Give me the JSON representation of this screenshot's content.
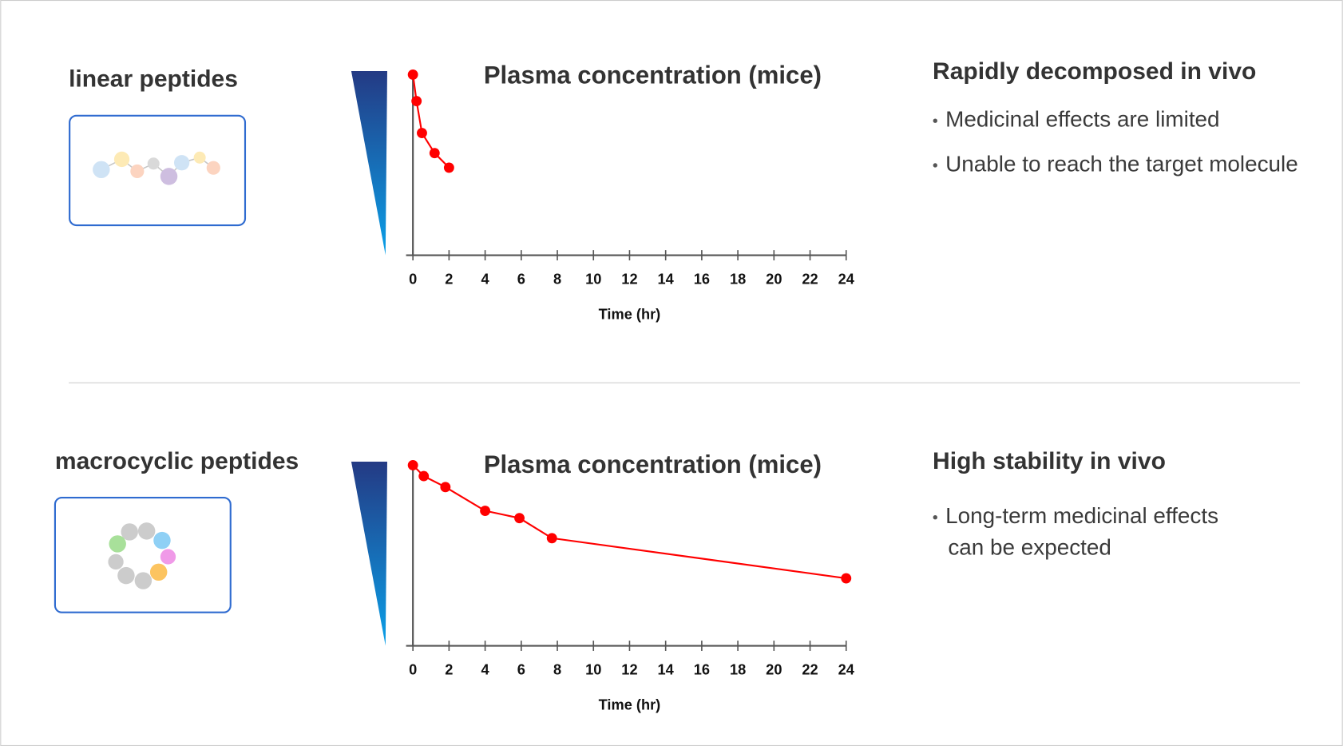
{
  "chart_data": [
    {
      "type": "line",
      "title": "Plasma concentration (mice)",
      "xlabel": "Time (hr)",
      "x": [
        0,
        0.2,
        0.5,
        1.2,
        2
      ],
      "values": [
        99,
        84.5,
        67,
        56,
        48
      ],
      "xlim": [
        0,
        24
      ],
      "xticks": [
        0,
        2,
        4,
        6,
        8,
        10,
        12,
        14,
        16,
        18,
        20,
        22,
        24
      ],
      "ylim": [
        0,
        100
      ],
      "color": "#ff0000"
    },
    {
      "type": "line",
      "title": "Plasma concentration (mice)",
      "xlabel": "Time (hr)",
      "x": [
        0,
        0.6,
        1.8,
        4,
        5.9,
        7.7,
        24
      ],
      "values": [
        99,
        93,
        87,
        74,
        70,
        59,
        37
      ],
      "xlim": [
        0,
        24
      ],
      "xticks": [
        0,
        2,
        4,
        6,
        8,
        10,
        12,
        14,
        16,
        18,
        20,
        22,
        24
      ],
      "ylim": [
        0,
        100
      ],
      "color": "#ff0000"
    }
  ],
  "panels": [
    {
      "label": "linear peptides",
      "heading": "Rapidly decomposed in vivo",
      "bullets": [
        [
          "Medicinal effects are limited"
        ],
        [
          "Unable to reach the target molecule"
        ]
      ]
    },
    {
      "label": "macrocyclic peptides",
      "heading": "High stability in vivo",
      "bullets": [
        [
          "Long-term medicinal effects",
          "can be expected"
        ]
      ]
    }
  ]
}
